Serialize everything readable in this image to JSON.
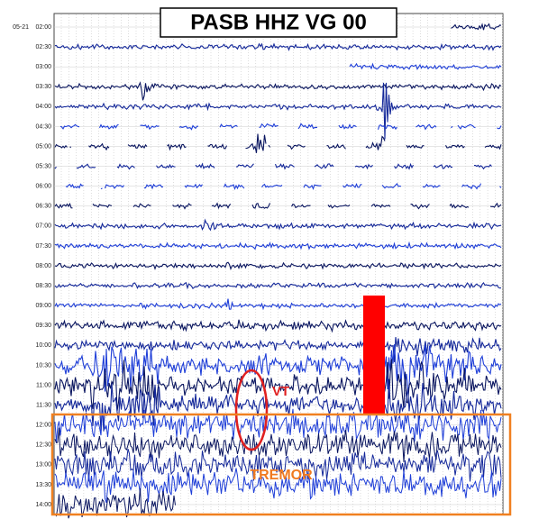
{
  "header": {
    "title": "PASB HHZ VG 00"
  },
  "time_axis": {
    "date": "05-21",
    "labels": [
      "02:00",
      "02:30",
      "03:00",
      "03:30",
      "04:00",
      "04:30",
      "05:00",
      "05:30",
      "06:00",
      "06:30",
      "07:00",
      "07:30",
      "08:00",
      "08:30",
      "09:00",
      "09:30",
      "10:00",
      "10:30",
      "11:00",
      "11:30",
      "12:00",
      "12:30",
      "13:00",
      "13:30",
      "14:00"
    ]
  },
  "annotations": {
    "vt": "VT",
    "tremor": "TREMOR"
  }
}
